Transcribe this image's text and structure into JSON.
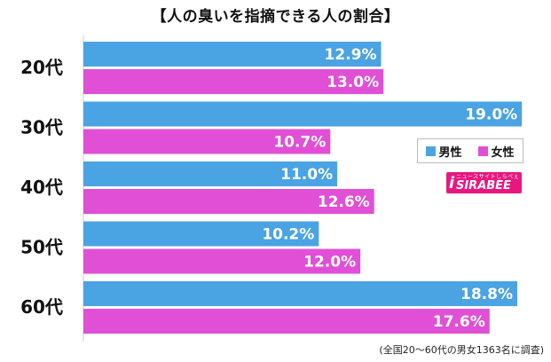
{
  "chart_data": {
    "type": "bar",
    "orientation": "horizontal",
    "title": "【人の臭いを指摘できる人の割合】",
    "categories": [
      "20代",
      "30代",
      "40代",
      "50代",
      "60代"
    ],
    "series": [
      {
        "name": "男性",
        "color": "#4aa3e2",
        "values": [
          12.9,
          19.0,
          11.0,
          10.2,
          18.8
        ]
      },
      {
        "name": "女性",
        "color": "#e04fd6",
        "values": [
          13.0,
          10.7,
          12.6,
          12.0,
          17.6
        ]
      }
    ],
    "value_suffix": "%",
    "xlim": [
      0,
      19.3
    ],
    "grid": false,
    "legend_position": "right"
  },
  "logo": {
    "sub": "ニュースサイトしらべぇ",
    "main": "SIRABEE",
    "mark": "i"
  },
  "footnote": "(全国20～60代の男女1363名に調査)"
}
